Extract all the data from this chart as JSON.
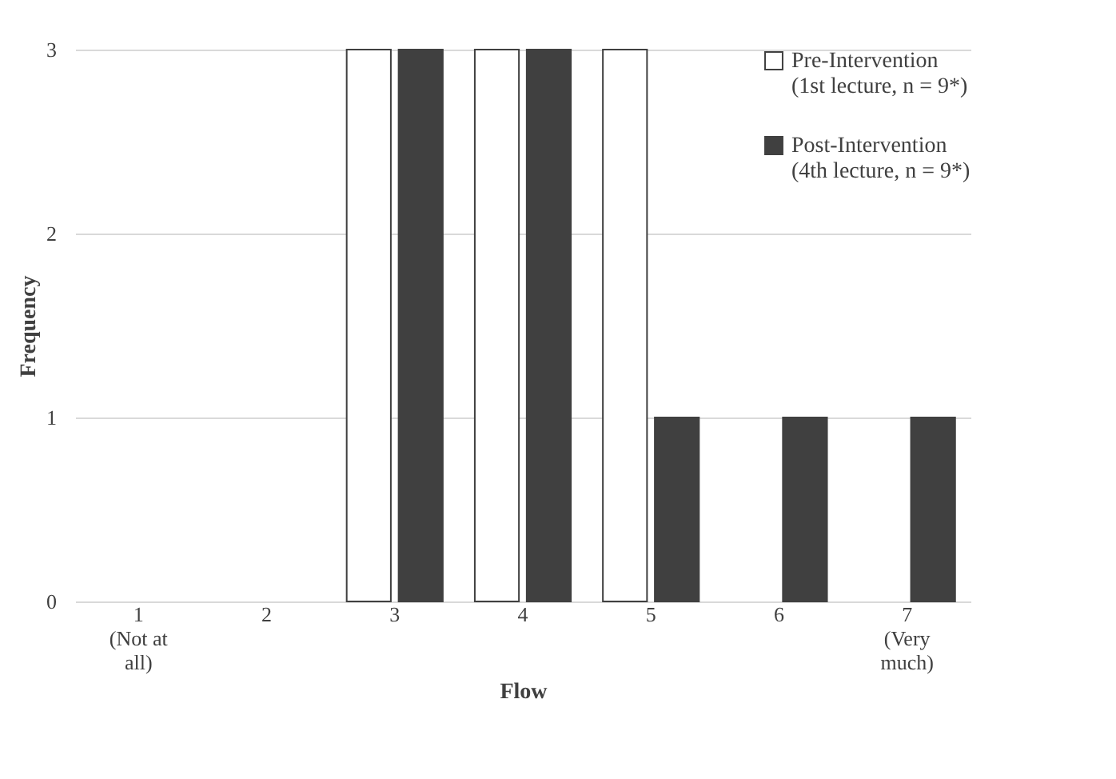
{
  "chart_data": {
    "type": "bar",
    "xlabel": "Flow",
    "ylabel": "Frequency",
    "categories": [
      "1\n(Not at\nall)",
      "2",
      "3",
      "4",
      "5",
      "6",
      "7\n(Very\nmuch)"
    ],
    "series": [
      {
        "name": "Pre-Intervention\n(1st lecture, n = 9*)",
        "color": "#ffffff",
        "values": [
          0,
          0,
          3,
          3,
          3,
          0,
          0
        ]
      },
      {
        "name": "Post-Intervention\n(4th lecture, n = 9*)",
        "color": "#404040",
        "values": [
          0,
          0,
          3,
          3,
          1,
          1,
          1
        ]
      }
    ],
    "ylim": [
      0,
      3
    ],
    "yticks": [
      0,
      1,
      2,
      3
    ],
    "grid": "y",
    "legend": "top right"
  }
}
